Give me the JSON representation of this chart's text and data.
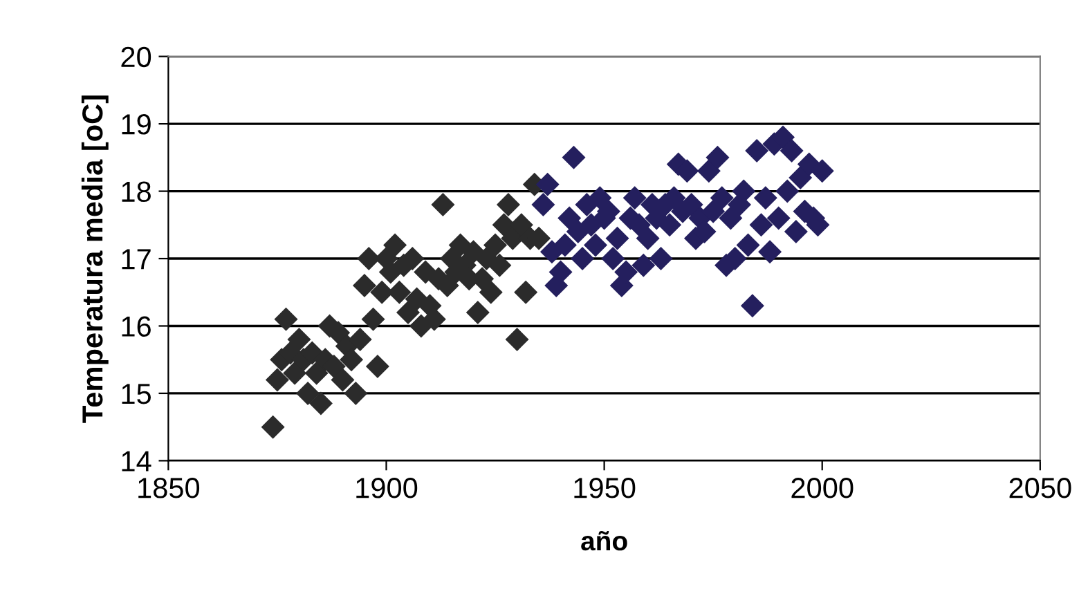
{
  "chart_data": {
    "type": "scatter",
    "xlabel": "año",
    "ylabel": "Temperatura media [oC]",
    "xlim": [
      1850,
      2050
    ],
    "xticks": [
      1850,
      1900,
      1950,
      2000,
      2050
    ],
    "ylim": [
      14,
      20
    ],
    "yticks": [
      14,
      15,
      16,
      17,
      18,
      19,
      20
    ],
    "grid": "y",
    "marker": "diamond",
    "series": [
      {
        "color": "#2b2b2b",
        "x": [
          1874,
          1875,
          1876,
          1877,
          1878,
          1879,
          1880,
          1881,
          1882,
          1883,
          1884,
          1885,
          1886,
          1887,
          1888,
          1889,
          1890,
          1891,
          1892,
          1893,
          1894,
          1895,
          1896,
          1897,
          1898,
          1899,
          1900,
          1901,
          1902,
          1903,
          1904,
          1905,
          1906,
          1907,
          1908,
          1909,
          1910,
          1911,
          1912,
          1913,
          1914,
          1915,
          1916,
          1917,
          1918,
          1919,
          1920,
          1921,
          1922,
          1923,
          1924,
          1925,
          1926,
          1927,
          1928,
          1929,
          1930,
          1931,
          1932,
          1933,
          1934,
          1935
        ],
        "values": [
          14.5,
          15.2,
          15.5,
          16.1,
          15.6,
          15.3,
          15.8,
          15.5,
          15.0,
          15.6,
          15.3,
          14.85,
          15.5,
          16.0,
          15.4,
          15.9,
          15.2,
          15.7,
          15.5,
          15.0,
          15.8,
          16.6,
          17.0,
          16.1,
          15.4,
          16.5,
          17.0,
          16.8,
          17.2,
          16.5,
          16.9,
          16.2,
          17.0,
          16.4,
          16.0,
          16.8,
          16.3,
          16.1,
          16.7,
          17.8,
          16.6,
          17.0,
          16.8,
          17.2,
          16.9,
          16.7,
          17.1,
          16.2,
          16.7,
          17.0,
          16.5,
          17.2,
          16.9,
          17.5,
          17.8,
          17.3,
          15.8,
          17.5,
          16.5,
          17.3,
          18.1,
          17.3
        ]
      },
      {
        "color": "#241f5e",
        "x": [
          1936,
          1937,
          1938,
          1939,
          1940,
          1941,
          1942,
          1943,
          1944,
          1945,
          1946,
          1947,
          1948,
          1949,
          1950,
          1951,
          1952,
          1953,
          1954,
          1955,
          1956,
          1957,
          1958,
          1959,
          1960,
          1961,
          1962,
          1963,
          1964,
          1965,
          1966,
          1967,
          1968,
          1969,
          1970,
          1971,
          1972,
          1973,
          1974,
          1975,
          1976,
          1977,
          1978,
          1979,
          1980,
          1981,
          1982,
          1983,
          1984,
          1985,
          1986,
          1987,
          1988,
          1989,
          1990,
          1991,
          1992,
          1993,
          1994,
          1995,
          1996,
          1997,
          1998,
          1999,
          2000
        ],
        "values": [
          17.8,
          18.1,
          17.1,
          16.6,
          16.8,
          17.2,
          17.6,
          18.5,
          17.4,
          17.0,
          17.8,
          17.5,
          17.2,
          17.9,
          17.6,
          17.7,
          17.0,
          17.3,
          16.6,
          16.8,
          17.6,
          17.9,
          17.5,
          16.9,
          17.3,
          17.8,
          17.6,
          17.0,
          17.8,
          17.5,
          17.9,
          18.4,
          17.7,
          18.3,
          17.8,
          17.3,
          17.6,
          17.4,
          18.3,
          17.7,
          18.5,
          17.9,
          16.9,
          17.6,
          17.0,
          17.8,
          18.0,
          17.2,
          16.3,
          18.6,
          17.5,
          17.9,
          17.1,
          18.7,
          17.6,
          18.8,
          18.0,
          18.6,
          17.4,
          18.2,
          17.7,
          18.4,
          17.6,
          17.5,
          18.3
        ]
      }
    ]
  }
}
